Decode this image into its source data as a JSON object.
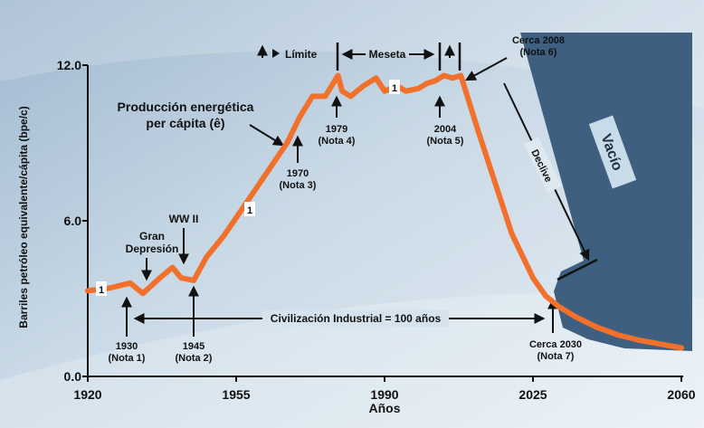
{
  "chart_data": {
    "type": "line",
    "xlabel": "Años",
    "ylabel": "Barriles petróleo equivalente/cápita (bpe/c)",
    "xlim": [
      1920,
      2060
    ],
    "ylim": [
      0,
      12
    ],
    "x_ticks": [
      "1920",
      "1955",
      "1990",
      "2025",
      "2060"
    ],
    "y_ticks": [
      "0.0",
      "6.0",
      "12.0"
    ],
    "series": [
      {
        "name": "Producción energética per cápita (ê)",
        "color": "#f0702c",
        "x": [
          1920,
          1925,
          1930,
          1933,
          1937,
          1940,
          1942,
          1945,
          1948,
          1952,
          1957,
          1962,
          1967,
          1970,
          1973,
          1976,
          1979,
          1980,
          1982,
          1985,
          1988,
          1990,
          1993,
          1995,
          1998,
          2000,
          2002,
          2004,
          2006,
          2008,
          2012,
          2016,
          2020,
          2025,
          2028,
          2031,
          2035,
          2040,
          2045,
          2050,
          2055,
          2060
        ],
        "y": [
          3.3,
          3.4,
          3.6,
          3.2,
          3.8,
          4.2,
          3.8,
          3.7,
          4.6,
          5.4,
          6.6,
          7.8,
          9.0,
          10.0,
          10.8,
          10.8,
          11.6,
          11.0,
          10.8,
          11.2,
          11.5,
          11.0,
          11.2,
          11.0,
          11.1,
          11.3,
          11.4,
          11.6,
          11.5,
          11.6,
          9.5,
          7.5,
          5.5,
          3.8,
          3.1,
          2.7,
          2.3,
          1.9,
          1.6,
          1.4,
          1.25,
          1.1
        ]
      }
    ],
    "annotations": {
      "pulse_labels": [
        "1",
        "1",
        "1"
      ],
      "gran_depresion": "Gran\nDepresión",
      "ww2": "WW II",
      "produccion": "Producción energética\nper cápita (ê)",
      "limite": "Límite",
      "meseta": "Meseta",
      "n1979": "1979\n(Nota 4)",
      "n1970": "1970\n(Nota 3)",
      "n2004": "2004\n(Nota 5)",
      "cerca2008": "Cerca 2008\n(Nota 6)",
      "declive": "Declive",
      "vacio": "Vacío",
      "civilizacion": "Civilización Industrial = 100 años",
      "n1930": "1930\n(Nota 1)",
      "n1945": "1945\n(Nota 2)",
      "cerca2030": "Cerca 2030\n(Nota 7)"
    }
  }
}
